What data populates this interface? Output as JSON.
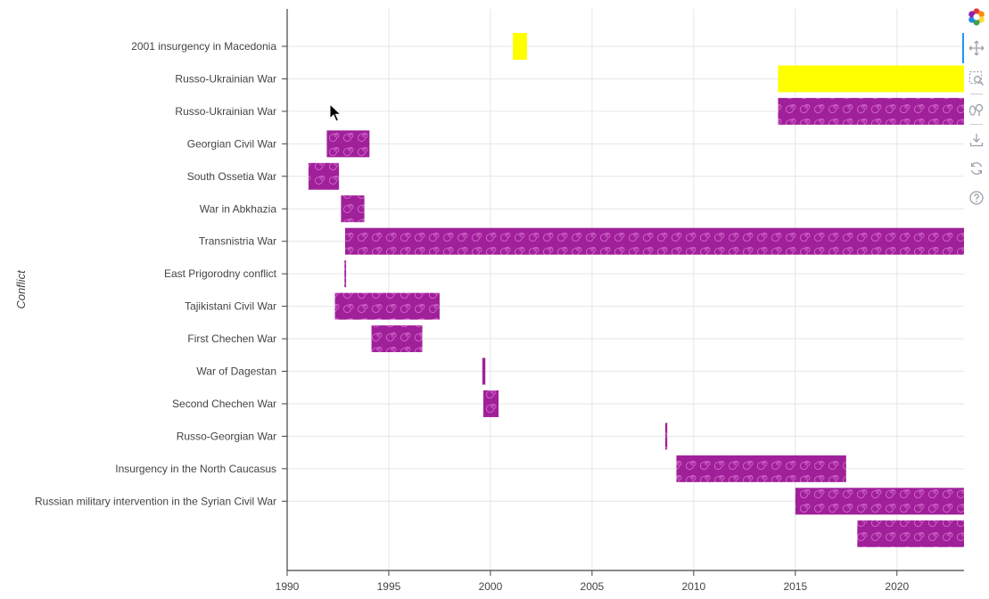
{
  "chart_data": {
    "type": "gantt",
    "ylabel": "Conflict",
    "xlabel": "",
    "xlim": [
      1990,
      2023.3
    ],
    "xticks": [
      1990,
      1995,
      2000,
      2005,
      2010,
      2015,
      2020
    ],
    "grid": true,
    "rows": [
      {
        "label": "2001 insurgency in Macedonia",
        "start": 2001.1,
        "end": 2001.8,
        "fill": "solid",
        "color": "#ffff00"
      },
      {
        "label": "Russo-Ukrainian War",
        "start": 2014.15,
        "end": 2023.3,
        "fill": "solid",
        "color": "#ffff00"
      },
      {
        "label": "Russo-Ukrainian War",
        "start": 2014.15,
        "end": 2023.3,
        "fill": "spiral",
        "color": "#a0209a"
      },
      {
        "label": "Georgian Civil War",
        "start": 1991.95,
        "end": 1994.05,
        "fill": "spiral",
        "color": "#a0209a"
      },
      {
        "label": "South Ossetia War",
        "start": 1991.05,
        "end": 1992.55,
        "fill": "spiral",
        "color": "#a0209a"
      },
      {
        "label": "War in Abkhazia",
        "start": 1992.65,
        "end": 1993.8,
        "fill": "spiral",
        "color": "#a0209a"
      },
      {
        "label": "Transnistria War",
        "start": 1992.85,
        "end": 2023.3,
        "fill": "spiral",
        "color": "#a0209a"
      },
      {
        "label": "East Prigorodny conflict",
        "start": 1992.82,
        "end": 1992.9,
        "fill": "spiral",
        "color": "#a0209a"
      },
      {
        "label": "Tajikistani Civil War",
        "start": 1992.35,
        "end": 1997.5,
        "fill": "spiral",
        "color": "#a0209a"
      },
      {
        "label": "First Chechen War",
        "start": 1994.15,
        "end": 1996.65,
        "fill": "spiral",
        "color": "#a0209a"
      },
      {
        "label": "War of Dagestan",
        "start": 1999.6,
        "end": 1999.75,
        "fill": "spiral",
        "color": "#a0209a"
      },
      {
        "label": "Second Chechen War",
        "start": 1999.65,
        "end": 2000.4,
        "fill": "spiral",
        "color": "#a0209a"
      },
      {
        "label": "Russo-Georgian War",
        "start": 2008.6,
        "end": 2008.7,
        "fill": "spiral",
        "color": "#a0209a"
      },
      {
        "label": "Insurgency in the North Caucasus",
        "start": 2009.15,
        "end": 2017.5,
        "fill": "spiral",
        "color": "#a0209a"
      },
      {
        "label": "Russian military intervention in the Syrian Civil War",
        "start": 2015.0,
        "end": 2023.3,
        "fill": "spiral",
        "color": "#a0209a"
      },
      {
        "label": "",
        "start": 2018.05,
        "end": 2023.3,
        "fill": "spiral",
        "color": "#a0209a"
      }
    ]
  },
  "toolbar": {
    "tools": [
      {
        "name": "bokeh-logo-icon"
      },
      {
        "name": "pan-icon"
      },
      {
        "name": "box-zoom-icon"
      },
      {
        "name": "wheel-zoom-icon"
      },
      {
        "name": "save-icon"
      },
      {
        "name": "reset-icon"
      },
      {
        "name": "help-icon"
      }
    ],
    "active_color": "#2196f3"
  }
}
